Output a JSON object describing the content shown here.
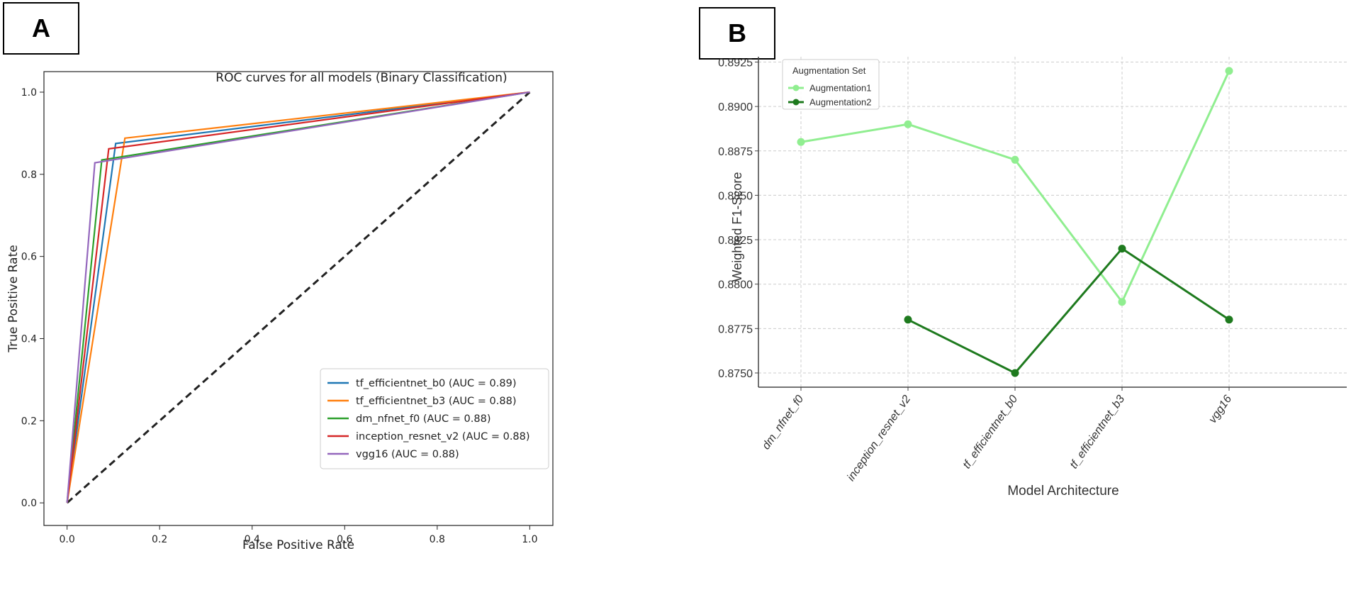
{
  "labels": {
    "panel_a": "A",
    "panel_b": "B"
  },
  "chart_data": [
    {
      "type": "line",
      "title": "ROC curves for all models (Binary Classification)",
      "xlabel": "False Positive Rate",
      "ylabel": "True Positive Rate",
      "xlim": [
        -0.05,
        1.05
      ],
      "ylim": [
        -0.055,
        1.05
      ],
      "xticks": [
        0.0,
        0.2,
        0.4,
        0.6,
        0.8,
        1.0
      ],
      "xtick_labels": [
        "0.0",
        "0.2",
        "0.4",
        "0.6",
        "0.8",
        "1.0"
      ],
      "yticks": [
        0.0,
        0.2,
        0.4,
        0.6,
        0.8,
        1.0
      ],
      "ytick_labels": [
        "0.0",
        "0.2",
        "0.4",
        "0.6",
        "0.8",
        "1.0"
      ],
      "legend_position": "lower-right",
      "series": [
        {
          "name": "tf_efficientnet_b0 (AUC = 0.89)",
          "color": "#1f77b4",
          "x": [
            0,
            0.105,
            1
          ],
          "y": [
            0,
            0.875,
            1
          ]
        },
        {
          "name": "tf_efficientnet_b3 (AUC = 0.88)",
          "color": "#ff7f0e",
          "x": [
            0,
            0.125,
            1
          ],
          "y": [
            0,
            0.888,
            1
          ]
        },
        {
          "name": "dm_nfnet_f0 (AUC = 0.88)",
          "color": "#2ca02c",
          "x": [
            0,
            0.075,
            1
          ],
          "y": [
            0,
            0.835,
            1
          ]
        },
        {
          "name": "inception_resnet_v2 (AUC = 0.88)",
          "color": "#d62728",
          "x": [
            0,
            0.09,
            1
          ],
          "y": [
            0,
            0.862,
            1
          ]
        },
        {
          "name": "vgg16 (AUC = 0.88)",
          "color": "#9467bd",
          "x": [
            0,
            0.06,
            1
          ],
          "y": [
            0,
            0.828,
            1
          ]
        }
      ],
      "reference_line": {
        "x": [
          0,
          1
        ],
        "y": [
          0,
          1
        ],
        "color": "#222222",
        "style": "dashed"
      }
    },
    {
      "type": "line",
      "xlabel": "Model Architecture",
      "ylabel": "Weighted F1-Score",
      "categories": [
        "dm_nfnet_f0",
        "inception_resnet_v2",
        "tf_efficientnet_b0",
        "tf_efficientnet_b3",
        "vgg16"
      ],
      "ylim": [
        0.8742,
        0.8928
      ],
      "yticks": [
        0.875,
        0.8775,
        0.88,
        0.8825,
        0.885,
        0.8875,
        0.89,
        0.8925
      ],
      "ytick_labels": [
        "0.8750",
        "0.8775",
        "0.8800",
        "0.8825",
        "0.8850",
        "0.8875",
        "0.8900",
        "0.8925"
      ],
      "grid": true,
      "legend_title": "Augmentation Set",
      "legend_position": "top-left",
      "series": [
        {
          "name": "Augmentation1",
          "color": "#90ee90",
          "values": [
            0.888,
            0.889,
            0.887,
            0.879,
            0.892
          ]
        },
        {
          "name": "Augmentation2",
          "color": "#1e7a1e",
          "values": [
            null,
            0.878,
            0.875,
            0.882,
            0.878
          ]
        }
      ]
    }
  ]
}
